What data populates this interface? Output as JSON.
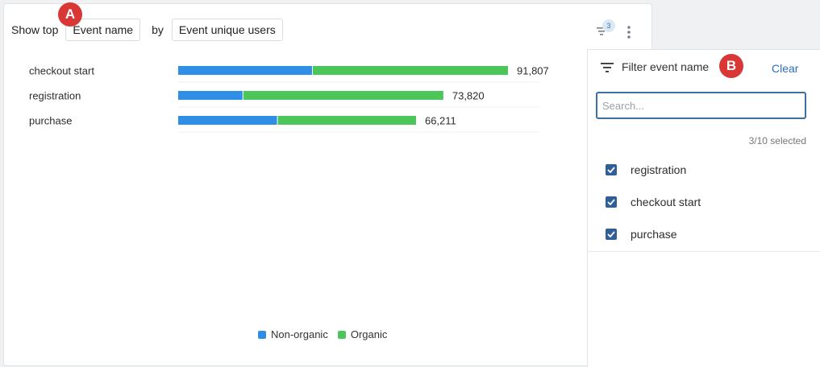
{
  "toolbar": {
    "show_top_label": "Show top",
    "group_by_value": "Event name",
    "by_label": "by",
    "metric_value": "Event unique users",
    "filter_count": "3"
  },
  "markers": {
    "a": "A",
    "b": "B"
  },
  "chart_data": {
    "type": "bar",
    "orientation": "horizontal",
    "stacked": true,
    "categories": [
      "checkout start",
      "registration",
      "purchase"
    ],
    "series": [
      {
        "name": "Non-organic",
        "values": [
          37250,
          17900,
          27500
        ],
        "color": "#2f8ee5"
      },
      {
        "name": "Organic",
        "values": [
          54557,
          55920,
          38711
        ],
        "color": "#4cc65a"
      }
    ],
    "totals": [
      "91,807",
      "73,820",
      "66,211"
    ],
    "xlim": [
      0,
      92000
    ],
    "legend_position": "bottom"
  },
  "filter_panel": {
    "title": "Filter event name",
    "clear_label": "Clear",
    "search_placeholder": "Search...",
    "selected_count": "3/10 selected",
    "options": [
      {
        "label": "registration",
        "checked": true
      },
      {
        "label": "checkout start",
        "checked": true
      },
      {
        "label": "purchase",
        "checked": true
      }
    ]
  }
}
